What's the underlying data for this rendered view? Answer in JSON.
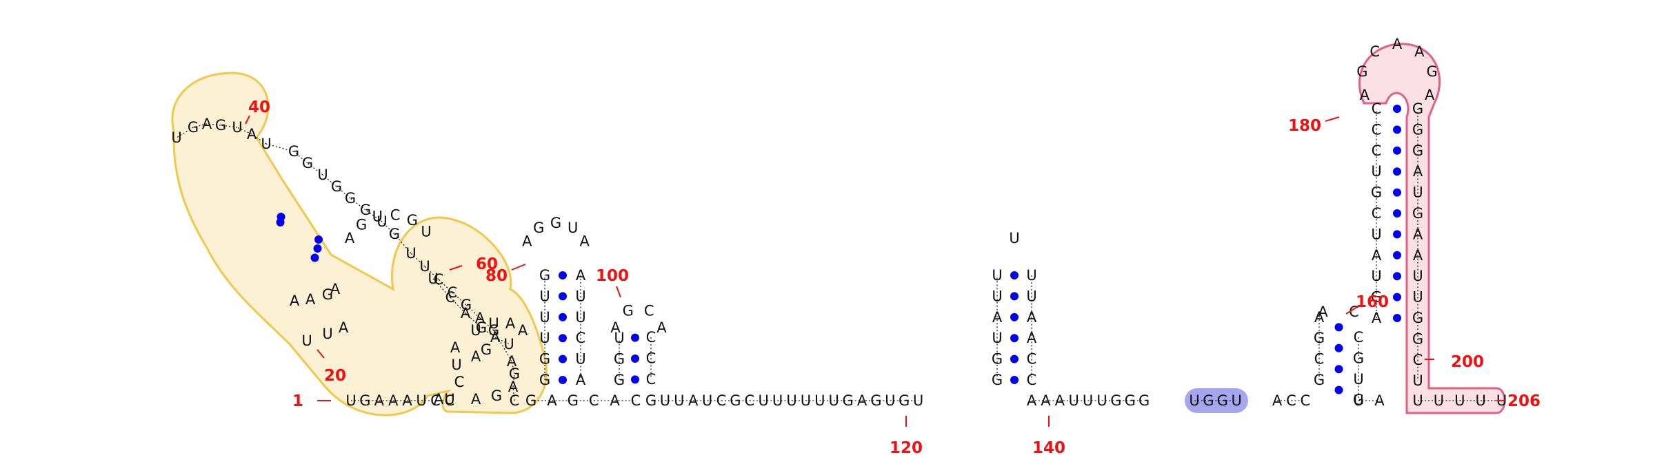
{
  "diagram": {
    "type": "rna-secondary-structure",
    "sequence_length": 206,
    "colors": {
      "nucleotide": "#111111",
      "base_pair": "#0000ee",
      "number_labels": "#ee1111",
      "yellow_region_fill": "#fbe6b3",
      "yellow_region_stroke": "#f0c84a",
      "blue_region_fill": "#a6a6ee",
      "pink_region_fill": "#fbe0e6",
      "pink_region_stroke": "#e0608a"
    },
    "position_numbers": [
      "1",
      "20",
      "40",
      "60",
      "80",
      "100",
      "120",
      "140",
      "160",
      "180",
      "200",
      "206"
    ],
    "nucleotides": {
      "baseline_left": [
        "U",
        "G",
        "A",
        "A",
        "A",
        "U",
        "C",
        "C"
      ],
      "hairpin_outer_left": [
        "C",
        "A",
        "G",
        "A",
        "G",
        "A",
        "G",
        "C",
        "C",
        "U",
        "U",
        "G",
        "U",
        "G",
        "G",
        "G",
        "U",
        "G",
        "G",
        "U",
        "A",
        "U",
        "G",
        "A",
        "G",
        "U"
      ],
      "hairpin_inner_left": [
        "U",
        "U",
        "A",
        "A",
        "A",
        "G",
        "A"
      ],
      "loop_top": [
        "A",
        "G",
        "U",
        "C",
        "G",
        "U"
      ],
      "descending_right": [
        "U",
        "C",
        "A",
        "G",
        "A",
        "U"
      ],
      "bottom_loop": [
        "A",
        "U",
        "C",
        "A",
        "G"
      ],
      "small_loop": [
        "G",
        "A",
        "C",
        "U",
        "A",
        "U",
        "U",
        "A",
        "A"
      ],
      "stem_80_left": [
        "G",
        "G",
        "U",
        "U",
        "U",
        "G"
      ],
      "stem_80_loop": [
        "A",
        "G",
        "G",
        "U",
        "A"
      ],
      "stem_80_right": [
        "A",
        "U",
        "U",
        "C",
        "U",
        "A"
      ],
      "baseline_mid_1": [
        "G",
        "A",
        "G",
        "C",
        "A",
        "C"
      ],
      "stem_100_left": [
        "G",
        "G",
        "U"
      ],
      "stem_100_loop": [
        "A",
        "G",
        "C",
        "A"
      ],
      "stem_100_right": [
        "C",
        "C",
        "C"
      ],
      "baseline_linker": [
        "G",
        "U",
        "U",
        "A",
        "U",
        "C",
        "G",
        "C",
        "U",
        "U",
        "U",
        "U",
        "U",
        "U",
        "G",
        "A",
        "G",
        "U",
        "G",
        "U"
      ],
      "stem_140_left": [
        "G",
        "G",
        "U",
        "A",
        "U",
        "U"
      ],
      "stem_140_loop": [
        "U"
      ],
      "stem_140_right": [
        "U",
        "U",
        "A",
        "A",
        "C",
        "C"
      ],
      "baseline_linker_2": [
        "A",
        "A",
        "A",
        "U",
        "U",
        "U",
        "G",
        "G",
        "G"
      ],
      "blue_highlight": [
        "U",
        "G",
        "G",
        "U"
      ],
      "baseline_pre_160": [
        "A",
        "C",
        "C"
      ],
      "stem_160_left": [
        "G",
        "C",
        "G",
        "A"
      ],
      "stem_160_loop": [
        "A",
        "C"
      ],
      "stem_160_right": [
        "C",
        "G",
        "U",
        "G"
      ],
      "baseline_post_160": [
        "U",
        "A"
      ],
      "stem_180_left": [
        "A",
        "G",
        "U",
        "A",
        "U",
        "C",
        "G",
        "U",
        "C",
        "C",
        "C"
      ],
      "stem_180_loop": [
        "A",
        "G",
        "C",
        "A",
        "A",
        "G",
        "A"
      ],
      "stem_180_right": [
        "G",
        "G",
        "G",
        "A",
        "U",
        "G",
        "A",
        "A",
        "U",
        "U",
        "G",
        "G",
        "C",
        "U"
      ],
      "tail": [
        "U",
        "U",
        "U",
        "U",
        "U"
      ]
    }
  }
}
